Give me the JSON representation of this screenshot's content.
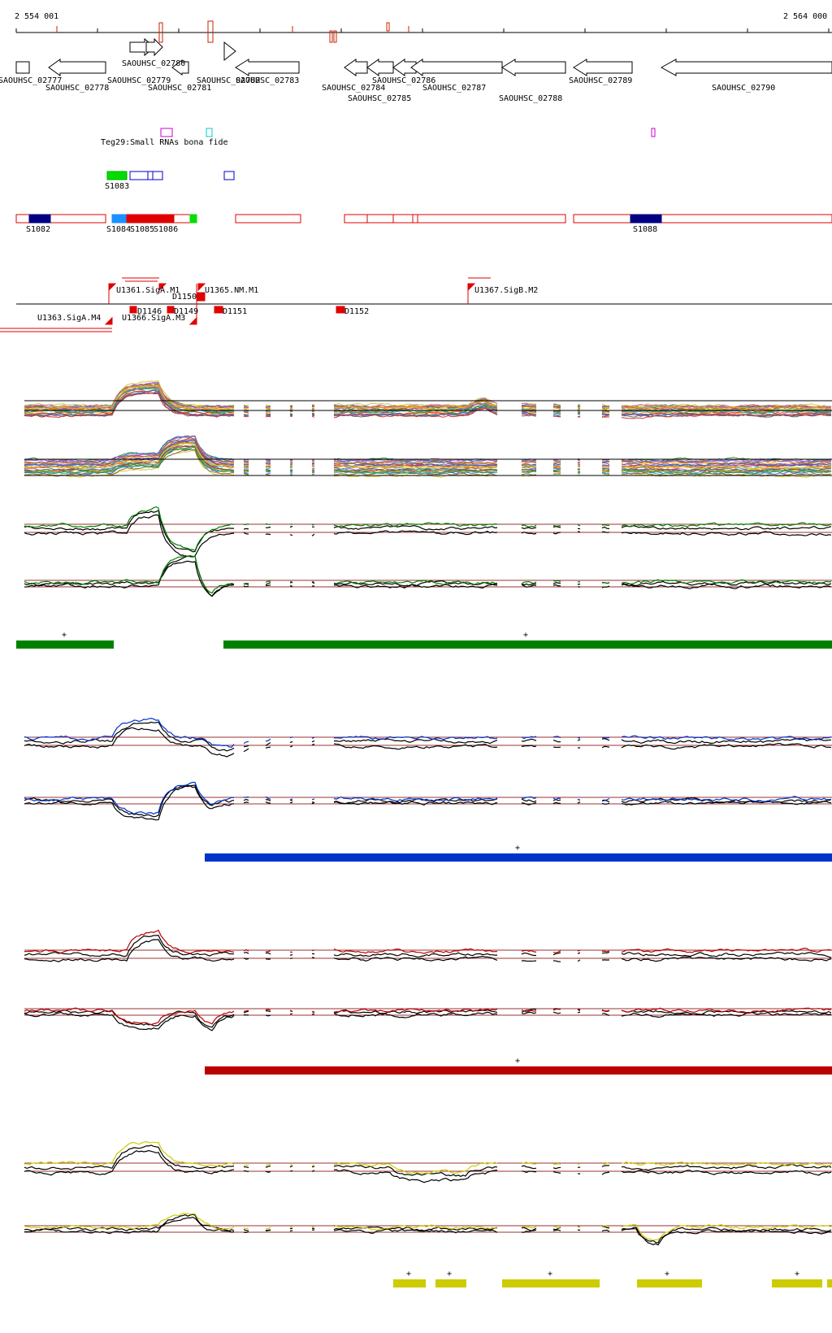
{
  "ruler": {
    "start_label": "2 554 001",
    "end_label": "2 564 000"
  },
  "colors": {
    "rna_red": "#e00000",
    "rna_dark_blue": "#000080",
    "rna_light_blue": "#1e90ff",
    "rna_green": "#00e000",
    "srna_magenta": "#cc00cc",
    "srna_cyan": "#00cccc",
    "srna_blue": "#0000cc",
    "panel1_green": "#008000",
    "panel2_blue": "#0033cc",
    "panel3_red": "#bb0000",
    "panel4_yellow": "#cccc00",
    "profile_black": "#000000",
    "baseline": "#993333"
  },
  "genes": {
    "row1": [
      "SAOUHSC_02777",
      "SAOUHSC_02779",
      "SAOUHSC_02780",
      "SAOUHSC_02782",
      "SAOUHSC_02783",
      "SAOUHSC_02786",
      "SAOUHSC_02789"
    ],
    "row2": [
      "SAOUHSC_02778",
      "SAOUHSC_02781",
      "SAOUHSC_02784",
      "SAOUHSC_02787",
      "SAOUHSC_02790"
    ],
    "row3": [
      "SAOUHSC_02785",
      "SAOUHSC_02788"
    ]
  },
  "srna": {
    "teg_label": "Teg29:Small RNAs bona fide",
    "s1083": "S1083"
  },
  "rna_segments": [
    "S1082",
    "S1084",
    "S1085",
    "S1086",
    "S1088"
  ],
  "upshifts": {
    "top": [
      "U1361.SigA.M1",
      "U1365.NM.M1",
      "U1367.SigB.M2"
    ],
    "bottom": [
      "U1363.SigA.M4",
      "U1366.SigA.M3"
    ],
    "down": [
      "D1146",
      "D1149",
      "D1150",
      "D1151",
      "D1152"
    ]
  },
  "segment_marks": {
    "green": [
      "+",
      "+"
    ],
    "blue": [
      "+"
    ],
    "red": [
      "+"
    ],
    "yellow": [
      "+",
      "+",
      "+",
      "+",
      "+"
    ]
  }
}
